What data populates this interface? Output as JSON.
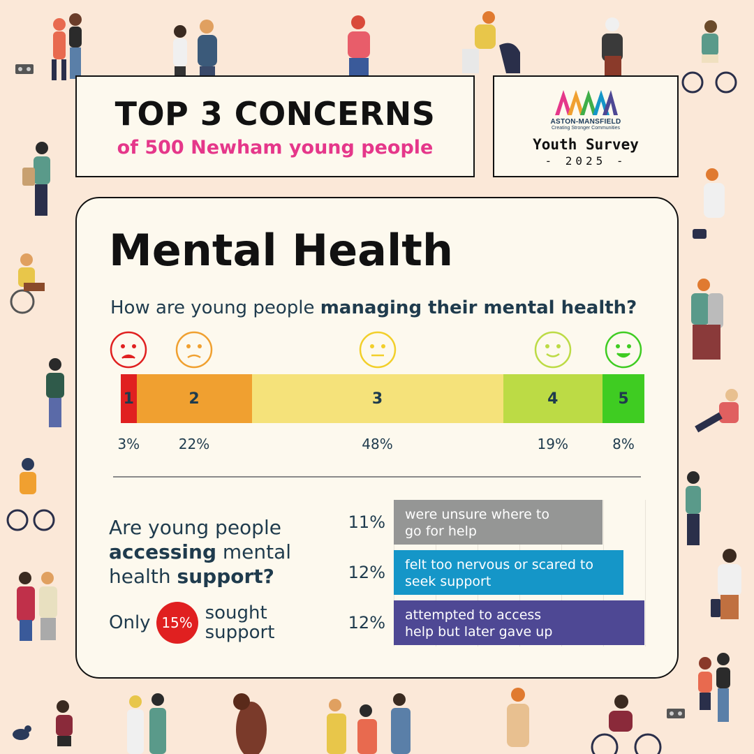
{
  "header": {
    "title": "TOP 3 CONCERNS",
    "subtitle": "of 500 Newham young people"
  },
  "logo": {
    "name": "ASTON-MANSFIELD",
    "tagline": "Creating Stronger Communities",
    "survey": "Youth Survey",
    "year": "- 2025 -"
  },
  "card": {
    "heading": "Mental Health",
    "question1_plain": "How are young people ",
    "question1_bold": "managing their mental health?",
    "question2_parts": [
      "Are young people ",
      "accessing",
      " mental health ",
      "support",
      "?"
    ],
    "only_label": "Only",
    "only_value": "15%",
    "only_suffix_1": "sought",
    "only_suffix_2": "support"
  },
  "colors": {
    "red": "#e02020",
    "orange": "#f0a030",
    "yellow": "#f5e27a",
    "lightgreen": "#bcdb45",
    "green": "#3fcc22",
    "grey": "#959695",
    "blue": "#1596c8",
    "purple": "#4e4894",
    "text": "#1f3b4d",
    "pink": "#e5378a"
  },
  "chart_data": [
    {
      "type": "bar",
      "orientation": "stacked-horizontal",
      "title": "How are young people managing their mental health?",
      "categories": [
        "1",
        "2",
        "3",
        "4",
        "5"
      ],
      "values": [
        3,
        22,
        48,
        19,
        8
      ],
      "value_labels": [
        "3%",
        "22%",
        "48%",
        "19%",
        "8%"
      ],
      "colors": [
        "#e02020",
        "#f0a030",
        "#f5e27a",
        "#bcdb45",
        "#3fcc22"
      ],
      "icons": [
        "sad-face-icon",
        "frown-face-icon",
        "neutral-face-icon",
        "smile-face-icon",
        "happy-face-icon"
      ]
    },
    {
      "type": "bar",
      "orientation": "horizontal",
      "title": "Are young people accessing mental health support?",
      "categories": [
        "were unsure where to go for help",
        "felt too nervous or scared to seek support",
        "attempted to access help but later gave up"
      ],
      "label_lines": [
        [
          "were unsure where to",
          "go for help"
        ],
        [
          "felt too nervous or scared to",
          "seek support"
        ],
        [
          "attempted to access",
          "help but later gave up"
        ]
      ],
      "values": [
        11,
        12,
        12
      ],
      "value_labels": [
        "11%",
        "12%",
        "12%"
      ],
      "colors": [
        "#959695",
        "#1596c8",
        "#4e4894"
      ]
    }
  ]
}
